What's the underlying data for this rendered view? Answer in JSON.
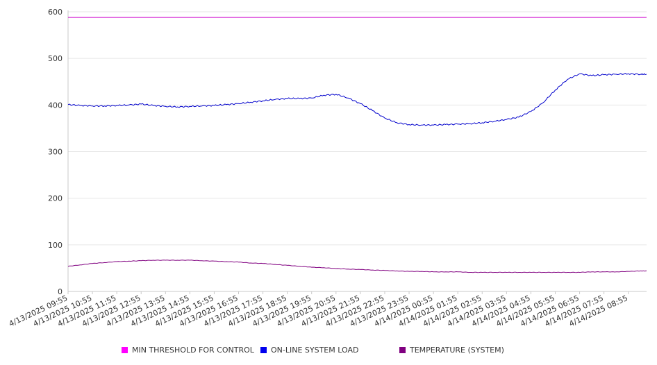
{
  "chart_data": {
    "type": "line",
    "title": "",
    "xlabel": "",
    "ylabel": "",
    "ylim": [
      0,
      600
    ],
    "y_ticks": [
      0,
      100,
      200,
      300,
      400,
      500,
      600
    ],
    "grid": true,
    "legend_position": "bottom",
    "x_tick_labels": [
      "4/13/2025 09:55",
      "4/13/2025 10:55",
      "4/13/2025 11:55",
      "4/13/2025 12:55",
      "4/13/2025 13:55",
      "4/13/2025 14:55",
      "4/13/2025 15:55",
      "4/13/2025 16:55",
      "4/13/2025 17:55",
      "4/13/2025 18:55",
      "4/13/2025 19:55",
      "4/13/2025 20:55",
      "4/13/2025 21:55",
      "4/13/2025 22:55",
      "4/13/2025 23:55",
      "4/14/2025 00:55",
      "4/14/2025 01:55",
      "4/14/2025 02:55",
      "4/14/2025 03:55",
      "4/14/2025 04:55",
      "4/14/2025 05:55",
      "4/14/2025 06:55",
      "4/14/2025 07:55",
      "4/14/2025 08:55"
    ],
    "x": [
      "4/13/2025 09:55",
      "4/13/2025 10:25",
      "4/13/2025 10:55",
      "4/13/2025 11:25",
      "4/13/2025 11:55",
      "4/13/2025 12:25",
      "4/13/2025 12:55",
      "4/13/2025 13:25",
      "4/13/2025 13:55",
      "4/13/2025 14:25",
      "4/13/2025 14:55",
      "4/13/2025 15:25",
      "4/13/2025 15:55",
      "4/13/2025 16:25",
      "4/13/2025 16:55",
      "4/13/2025 17:25",
      "4/13/2025 17:55",
      "4/13/2025 18:25",
      "4/13/2025 18:55",
      "4/13/2025 19:25",
      "4/13/2025 19:55",
      "4/13/2025 20:25",
      "4/13/2025 20:55",
      "4/13/2025 21:25",
      "4/13/2025 21:55",
      "4/13/2025 22:25",
      "4/13/2025 22:55",
      "4/13/2025 23:25",
      "4/13/2025 23:55",
      "4/14/2025 00:25",
      "4/14/2025 00:55",
      "4/14/2025 01:25",
      "4/14/2025 01:55",
      "4/14/2025 02:25",
      "4/14/2025 02:55",
      "4/14/2025 03:25",
      "4/14/2025 03:55",
      "4/14/2025 04:25",
      "4/14/2025 04:55",
      "4/14/2025 05:25",
      "4/14/2025 05:55",
      "4/14/2025 06:25",
      "4/14/2025 06:55",
      "4/14/2025 07:25",
      "4/14/2025 07:55",
      "4/14/2025 08:25",
      "4/14/2025 08:55",
      "4/14/2025 09:25",
      "4/14/2025 09:40"
    ],
    "series": [
      {
        "name": "MIN THRESHOLD FOR CONTROL",
        "color": "#cc00cc",
        "values": [
          588,
          588,
          588,
          588,
          588,
          588,
          588,
          588,
          588,
          588,
          588,
          588,
          588,
          588,
          588,
          588,
          588,
          588,
          588,
          588,
          588,
          588,
          588,
          588,
          588,
          588,
          588,
          588,
          588,
          588,
          588,
          588,
          588,
          588,
          588,
          588,
          588,
          588,
          588,
          588,
          588,
          588,
          588,
          588,
          588,
          588,
          588,
          588,
          588
        ]
      },
      {
        "name": "ON-LINE SYSTEM LOAD",
        "color": "#0000cc",
        "values": [
          401,
          399,
          398,
          398,
          399,
          400,
          402,
          399,
          397,
          396,
          397,
          398,
          399,
          401,
          403,
          406,
          409,
          412,
          414,
          414,
          415,
          421,
          423,
          415,
          403,
          388,
          372,
          362,
          358,
          357,
          357,
          358,
          359,
          360,
          362,
          365,
          369,
          374,
          386,
          405,
          432,
          455,
          467,
          463,
          465,
          466,
          467,
          466,
          466
        ]
      },
      {
        "name": "TEMPERATURE (SYSTEM)",
        "color": "#800080",
        "values": [
          54,
          57,
          60,
          62,
          64,
          65,
          66,
          67,
          67,
          67,
          67,
          66,
          65,
          64,
          63,
          61,
          60,
          58,
          56,
          54,
          52,
          51,
          49,
          48,
          47,
          46,
          45,
          44,
          43,
          43,
          42,
          42,
          42,
          41,
          41,
          41,
          41,
          41,
          41,
          41,
          41,
          41,
          41,
          42,
          42,
          42,
          43,
          44,
          44
        ]
      }
    ]
  }
}
